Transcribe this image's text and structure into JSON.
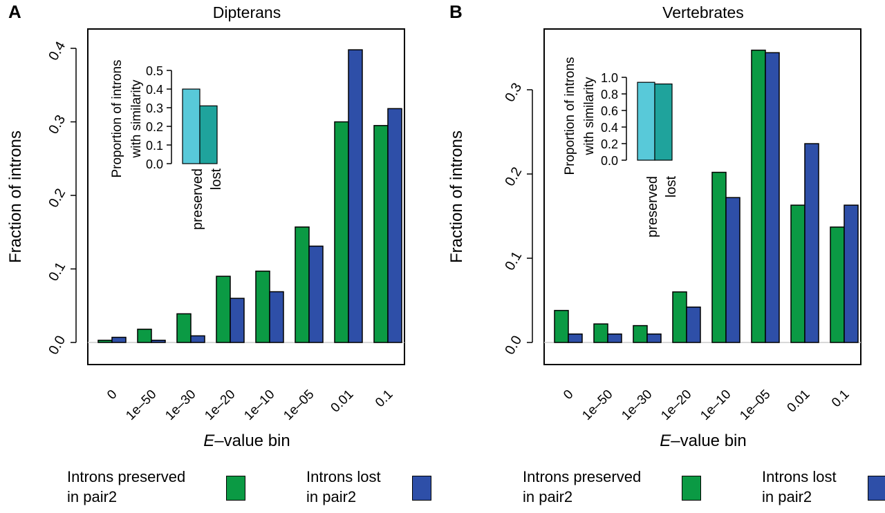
{
  "colors": {
    "preserved": "#0b9a44",
    "lost": "#2e4fa8",
    "inset_preserved": "#58c9d9",
    "inset_lost": "#1fa39c"
  },
  "chart_data": [
    {
      "type": "bar",
      "panel_label": "A",
      "title": "Dipterans",
      "xlabel_italic": "E",
      "xlabel_rest": "–value bin",
      "ylabel": "Fraction of introns",
      "ylim": [
        0,
        0.43
      ],
      "yticks": [
        0.0,
        0.1,
        0.2,
        0.3,
        0.4
      ],
      "ytick_labels": [
        "0.0",
        "0.1",
        "0.2",
        "0.3",
        "0.4"
      ],
      "categories": [
        "0",
        "1e–50",
        "1e–30",
        "1e–20",
        "1e–10",
        "1e–05",
        "0.01",
        "0.1"
      ],
      "series": [
        {
          "key": "preserved",
          "values": [
            0.003,
            0.018,
            0.039,
            0.09,
            0.097,
            0.157,
            0.3,
            0.295
          ]
        },
        {
          "key": "lost",
          "values": [
            0.007,
            0.003,
            0.009,
            0.06,
            0.069,
            0.131,
            0.398,
            0.318
          ]
        }
      ],
      "inset": {
        "ylabel_line1": "Proportion of introns",
        "ylabel_line2": "with similarity",
        "ylim": [
          0,
          0.5
        ],
        "yticks": [
          0.0,
          0.1,
          0.2,
          0.3,
          0.4,
          0.5
        ],
        "ytick_labels": [
          "0.0",
          "0.1",
          "0.2",
          "0.3",
          "0.4",
          "0.5"
        ],
        "categories": [
          "preserved",
          "lost"
        ],
        "values": [
          0.4,
          0.31
        ]
      }
    },
    {
      "type": "bar",
      "panel_label": "B",
      "title": "Vertebrates",
      "xlabel_italic": "E",
      "xlabel_rest": "–value bin",
      "ylabel": "Fraction of introns",
      "ylim": [
        0,
        0.36
      ],
      "yticks": [
        0.0,
        0.1,
        0.2,
        0.3
      ],
      "ytick_labels": [
        "0.0",
        "0.1",
        "0.2",
        "0.3"
      ],
      "categories": [
        "0",
        "1e–50",
        "1e–30",
        "1e–20",
        "1e–10",
        "1e–05",
        "0.01",
        "0.1"
      ],
      "series": [
        {
          "key": "preserved",
          "values": [
            0.038,
            0.022,
            0.02,
            0.06,
            0.202,
            0.347,
            0.163,
            0.137
          ]
        },
        {
          "key": "lost",
          "values": [
            0.01,
            0.01,
            0.01,
            0.042,
            0.172,
            0.344,
            0.236,
            0.163
          ]
        }
      ],
      "inset": {
        "ylabel_line1": "Proportion of introns",
        "ylabel_line2": "with similarity",
        "ylim": [
          0,
          1.0
        ],
        "yticks": [
          0.0,
          0.2,
          0.4,
          0.6,
          0.8,
          1.0
        ],
        "ytick_labels": [
          "0.0",
          "0.2",
          "0.4",
          "0.6",
          "0.8",
          "1.0"
        ],
        "categories": [
          "preserved",
          "lost"
        ],
        "values": [
          0.94,
          0.92
        ]
      }
    }
  ],
  "legend": [
    {
      "line1": "Introns preserved",
      "line2": "in pair2",
      "series": "preserved"
    },
    {
      "line1": "Introns lost",
      "line2": "in pair2",
      "series": "lost"
    },
    {
      "line1": "Introns preserved",
      "line2": "in pair2",
      "series": "preserved"
    },
    {
      "line1": "Introns lost",
      "line2": "in pair2",
      "series": "lost"
    }
  ]
}
